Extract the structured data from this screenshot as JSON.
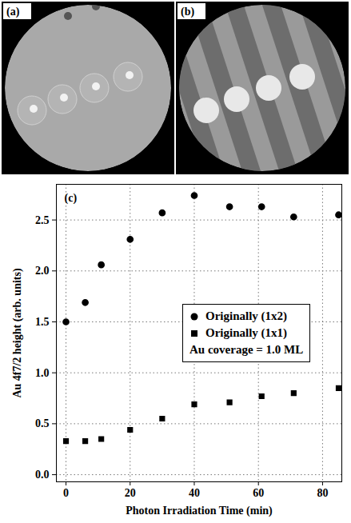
{
  "images": [
    {
      "label": "(a)"
    },
    {
      "label": "(b)"
    }
  ],
  "chart_data": {
    "type": "scatter",
    "panel_label": "(c)",
    "annotation": "Au coverage = 1.0 ML",
    "x_label": "Photon Irradiation Time (min)",
    "y_label": "Au 4f7/2 height (arb. units)",
    "x": [
      0,
      6,
      11,
      20,
      30,
      40,
      51,
      61,
      71,
      85
    ],
    "series": [
      {
        "name": "Originally (1x2)",
        "color": "#000000",
        "marker": "circle",
        "values": [
          1.5,
          1.69,
          2.06,
          2.31,
          2.57,
          2.74,
          2.63,
          2.63,
          2.53,
          2.55
        ]
      },
      {
        "name": "Originally (1x1)",
        "color": "#000000",
        "marker": "square",
        "values": [
          0.33,
          0.33,
          0.35,
          0.44,
          0.55,
          0.69,
          0.71,
          0.77,
          0.8,
          0.85
        ]
      }
    ],
    "xlim": [
      -3,
      86
    ],
    "xticks": [
      0,
      20,
      40,
      60,
      80
    ],
    "ylim": [
      -0.07,
      2.85
    ],
    "yticks": [
      {
        "value": 0,
        "label": "0.0"
      },
      {
        "value": 0.5,
        "label": "0.5"
      },
      {
        "value": 1,
        "label": "1.0"
      },
      {
        "value": 1.5,
        "label": "1.5"
      },
      {
        "value": 2,
        "label": "2.0"
      },
      {
        "value": 2.5,
        "label": "2.5"
      }
    ],
    "grid": true,
    "legend": "right"
  }
}
